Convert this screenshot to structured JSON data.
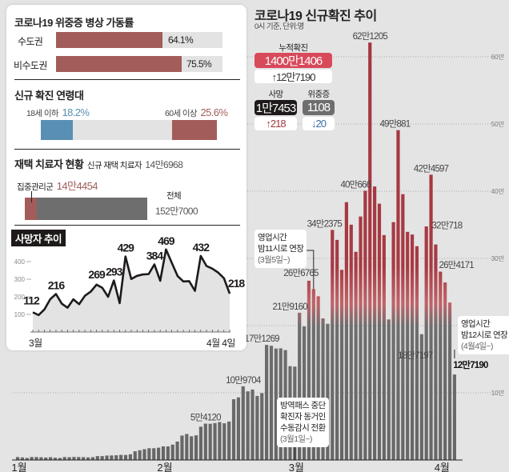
{
  "colors": {
    "red_bar": "#a23a41",
    "gray_bar": "#6d6d6d",
    "brown": "#a25d5a",
    "blue": "#5a8fb5",
    "cumulative_red": "#d8495a"
  },
  "left_panel": {
    "icu": {
      "title": "코로나19 위중증 병상 가동률",
      "rows": [
        {
          "label": "수도권",
          "value": "64.1%",
          "pct": 64.1
        },
        {
          "label": "비수도권",
          "value": "75.5%",
          "pct": 75.5
        }
      ]
    },
    "age": {
      "title": "신규 확진 연령대",
      "under18_label": "18세 이하",
      "under18_value": "18.2%",
      "under18_pct": 18.2,
      "over60_label": "60세 이상",
      "over60_value": "25.6%",
      "over60_pct": 25.6
    },
    "home": {
      "title": "재택 치료자 현황",
      "new_label": "신규 재택 치료자",
      "new_value": "14만6968",
      "intensive_label": "집중관리군",
      "intensive_value": "14만4454",
      "total_label": "전체",
      "total_value": "152만7000",
      "intensive_count": 144454,
      "total_count": 1527000
    },
    "deaths": {
      "title": "사망자 추이",
      "x_start": "3월",
      "x_end": "4월 4일"
    }
  },
  "header": {
    "title": "코로나19 신규확진 추이",
    "subtitle": "0시 기준, 단위:명"
  },
  "stats": {
    "cumulative_label": "누적확진",
    "cumulative_value": "1400만1406",
    "cumulative_change": "↑12만7190",
    "death_label": "사망",
    "death_value": "1만7453",
    "death_change": "↑218",
    "critical_label": "위중증",
    "critical_value": "1108",
    "critical_change": "↓20"
  },
  "notes": {
    "mar5": {
      "l1": "영업시간",
      "l2": "밤11시로 연장",
      "l3": "(3월5일~)"
    },
    "mar1": {
      "l1": "방역패스 중단",
      "l2": "확진자 동거인",
      "l3": "수동감시 전환",
      "l4": "(3월1일~)"
    },
    "apr4": {
      "l1": "영업시간",
      "l2": "밤12시로 연장",
      "l3": "(4월4일~)"
    }
  },
  "chart_data": [
    {
      "type": "bar",
      "title": "코로나19 신규확진 추이",
      "subtitle": "0시 기준, 단위:명",
      "x_range": [
        "1월 1일",
        "4월 4일"
      ],
      "x_ticks": [
        "1월",
        "2월",
        "3월",
        "4월"
      ],
      "y_ticks": [
        "10만",
        "20만",
        "30만",
        "40만",
        "50만",
        "60만"
      ],
      "ylim": [
        0,
        650000
      ],
      "grid": "dotted horizontal",
      "values": [
        4415,
        3833,
        3129,
        4442,
        4444,
        4126,
        3714,
        4194,
        3376,
        3005,
        4388,
        4167,
        4542,
        4423,
        4248,
        3857,
        4194,
        5804,
        5805,
        6603,
        6769,
        7009,
        7630,
        7513,
        8571,
        13012,
        14518,
        16096,
        17542,
        17528,
        18342,
        20270,
        20269,
        22907,
        27443,
        36362,
        38691,
        35286,
        36719,
        49567,
        54120,
        53926,
        54941,
        56431,
        54619,
        57177,
        90443,
        93135,
        109704,
        102211,
        104829,
        95362,
        99573,
        171269,
        170016,
        165890,
        166209,
        163565,
        139626,
        138993,
        219160,
        198803,
        266765,
        254327,
        243628,
        210716,
        202721,
        342375,
        327549,
        282987,
        383665,
        350190,
        309790,
        362338,
        400666,
        621205,
        407017,
        381454,
        334708,
        209169,
        353980,
        490881,
        395598,
        339514,
        335580,
        318130,
        187197,
        347554,
        424597,
        320718,
        280273,
        264171,
        234301,
        127190
      ],
      "data_labels": [
        {
          "day": 40,
          "text": "5만4120"
        },
        {
          "day": 48,
          "text": "10만9704"
        },
        {
          "day": 53,
          "text": "17만1269"
        },
        {
          "day": 60,
          "text": "21만9160"
        },
        {
          "day": 62,
          "text": "26만6765"
        },
        {
          "day": 67,
          "text": "34만2375"
        },
        {
          "day": 74,
          "text": "40만666"
        },
        {
          "day": 75,
          "text": "62만1205"
        },
        {
          "day": 81,
          "text": "49만881"
        },
        {
          "day": 88,
          "text": "42만4597"
        },
        {
          "day": 89,
          "text": "32만718"
        },
        {
          "day": 91,
          "text": "26만4171"
        },
        {
          "day": 86,
          "text": "18만7197"
        },
        {
          "day": 93,
          "text": "12만7190"
        }
      ]
    },
    {
      "type": "area",
      "title": "사망자 추이",
      "x_range": [
        "3월 1일",
        "4월 4일"
      ],
      "y_ticks": [
        100,
        200,
        300,
        400
      ],
      "ylim": [
        0,
        500
      ],
      "values": [
        112,
        96,
        128,
        186,
        216,
        161,
        138,
        186,
        158,
        206,
        229,
        269,
        251,
        200,
        293,
        164,
        429,
        301,
        319,
        327,
        329,
        384,
        291,
        469,
        393,
        318,
        287,
        289,
        234,
        432,
        375,
        360,
        338,
        306,
        218
      ],
      "data_labels": [
        {
          "day": 0,
          "text": "112"
        },
        {
          "day": 4,
          "text": "216"
        },
        {
          "day": 11,
          "text": "269"
        },
        {
          "day": 14,
          "text": "293"
        },
        {
          "day": 16,
          "text": "429"
        },
        {
          "day": 21,
          "text": "384"
        },
        {
          "day": 23,
          "text": "469"
        },
        {
          "day": 29,
          "text": "432"
        },
        {
          "day": 34,
          "text": "218"
        }
      ]
    }
  ]
}
